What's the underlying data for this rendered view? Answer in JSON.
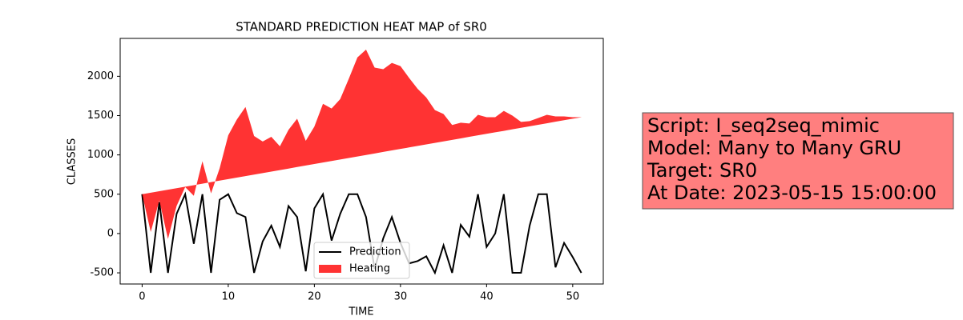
{
  "chart_data": {
    "type": "line-area",
    "title": "STANDARD PREDICTION HEAT MAP of SR0",
    "xlabel": "TIME",
    "ylabel": "CLASSES",
    "x": [
      0,
      1,
      2,
      3,
      4,
      5,
      6,
      7,
      8,
      9,
      10,
      11,
      12,
      13,
      14,
      15,
      16,
      17,
      18,
      19,
      20,
      21,
      22,
      23,
      24,
      25,
      26,
      27,
      28,
      29,
      30,
      31,
      32,
      33,
      34,
      35,
      36,
      37,
      38,
      39,
      40,
      41,
      42,
      43,
      44,
      45,
      46,
      47,
      48,
      49,
      50,
      51
    ],
    "series": [
      {
        "name": "Prediction",
        "kind": "line",
        "color": "#000000",
        "values": [
          500,
          -500,
          400,
          -500,
          250,
          500,
          -130,
          500,
          -500,
          430,
          500,
          260,
          210,
          -500,
          -100,
          100,
          -170,
          350,
          210,
          -480,
          320,
          500,
          -90,
          250,
          500,
          500,
          210,
          -450,
          -60,
          210,
          -120,
          -380,
          -350,
          -290,
          -500,
          -150,
          -500,
          110,
          -40,
          500,
          -170,
          0,
          500,
          -500,
          -500,
          100,
          500,
          500,
          -430,
          -120,
          -300,
          -500
        ]
      },
      {
        "name": "Heating",
        "kind": "area",
        "color": "#ff0000",
        "values": [
          500,
          20,
          420,
          -70,
          350,
          590,
          480,
          920,
          510,
          830,
          1250,
          1450,
          1610,
          1240,
          1170,
          1230,
          1110,
          1320,
          1460,
          1180,
          1360,
          1650,
          1590,
          1710,
          1970,
          2240,
          2340,
          2110,
          2090,
          2170,
          2130,
          1980,
          1840,
          1730,
          1570,
          1520,
          1380,
          1410,
          1400,
          1510,
          1480,
          1480,
          1560,
          1500,
          1420,
          1430,
          1470,
          1510,
          1490,
          1490,
          1480,
          1480
        ],
        "baseline": [
          500,
          519,
          538,
          558,
          577,
          596,
          615,
          634,
          654,
          673,
          692,
          711,
          730,
          750,
          769,
          788,
          807,
          826,
          846,
          865,
          884,
          903,
          922,
          942,
          961,
          980,
          999,
          1018,
          1038,
          1057,
          1076,
          1095,
          1114,
          1134,
          1153,
          1172,
          1191,
          1210,
          1230,
          1249,
          1268,
          1287,
          1306,
          1326,
          1345,
          1364,
          1383,
          1402,
          1422,
          1441,
          1460,
          1479
        ]
      }
    ],
    "xlim": [
      -2.55,
      53.55
    ],
    "xticks": [
      0,
      10,
      20,
      30,
      40,
      50
    ],
    "ylim": [
      -642,
      2482
    ],
    "yticks": [
      -500,
      0,
      500,
      1000,
      1500,
      2000
    ],
    "legend": "lower center",
    "annotation": {
      "lines": [
        "Script: I_seq2seq_mimic",
        "Model: Many to Many GRU",
        "Target: SR0",
        "At Date: 2023-05-15 15:00:00"
      ],
      "facecolor": "#ff7f7f"
    }
  }
}
